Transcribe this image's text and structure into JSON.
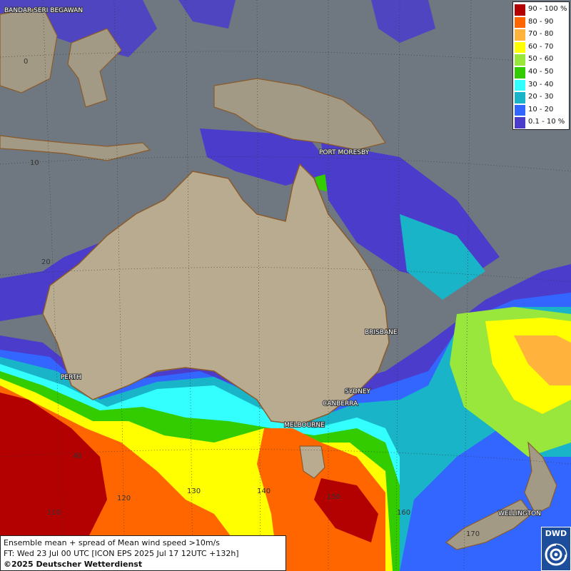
{
  "legend": {
    "entries": [
      {
        "label": "90 - 100 %",
        "color": "#b30000"
      },
      {
        "label": "80 - 90",
        "color": "#ff6600"
      },
      {
        "label": "70 - 80",
        "color": "#ffb33c"
      },
      {
        "label": "60 - 70",
        "color": "#ffff00"
      },
      {
        "label": "50 - 60",
        "color": "#99e63c"
      },
      {
        "label": "40 - 50",
        "color": "#33cc00"
      },
      {
        "label": "30 - 40",
        "color": "#33ffff"
      },
      {
        "label": "20 - 30",
        "color": "#19b4c8"
      },
      {
        "label": "10 - 20",
        "color": "#3366ff"
      },
      {
        "label": "0.1 - 10 %",
        "color": "#4b3ccc"
      }
    ]
  },
  "cities": {
    "bandar": "BANDAR SERI BEGAWAN",
    "port_moresby": "PORT MORESBY",
    "brisbane": "BRISBANE",
    "perth": "PERTH",
    "sydney": "SYDNEY",
    "canberra": "CANBERRA",
    "melbourne": "MELBOURNE",
    "wellington": "WELLINGTON"
  },
  "grid_labels": {
    "lat_0": "0",
    "lat_10": "10",
    "lat_20": "20",
    "lat_40": "40",
    "lon_110": "110",
    "lon_120": "120",
    "lon_130": "130",
    "lon_140": "140",
    "lon_150": "150",
    "lon_160": "160",
    "lon_170": "170"
  },
  "info": {
    "line1": "Ensemble mean + spread of Mean wind speed >10m/s",
    "line2": "FT: Wed 23 Jul 00 UTC [ICON EPS 2025 Jul 17 12UTC +132h]",
    "line3": "©2025 Deutscher Wetterdienst"
  },
  "logo": {
    "text": "DWD"
  }
}
